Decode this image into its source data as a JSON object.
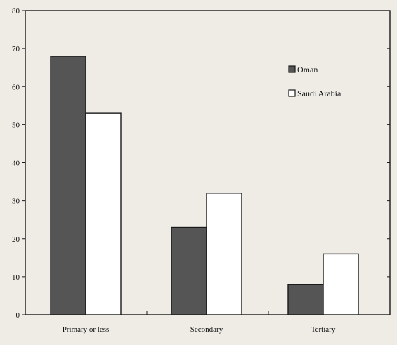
{
  "chart_data": {
    "type": "bar",
    "title": "",
    "xlabel": "",
    "ylabel": "",
    "categories": [
      "Primary or less",
      "Secondary",
      "Tertiary"
    ],
    "series": [
      {
        "name": "Oman",
        "values": [
          68,
          23,
          8
        ],
        "color": "#555555"
      },
      {
        "name": "Saudi Arabia",
        "values": [
          53,
          32,
          16
        ],
        "color": "#ffffff"
      }
    ],
    "ylim": [
      0,
      80
    ],
    "yticks": [
      "0",
      "10",
      "20",
      "30",
      "40",
      "50",
      "60",
      "70",
      "80"
    ],
    "grid": false,
    "legend_position": "top-right"
  }
}
